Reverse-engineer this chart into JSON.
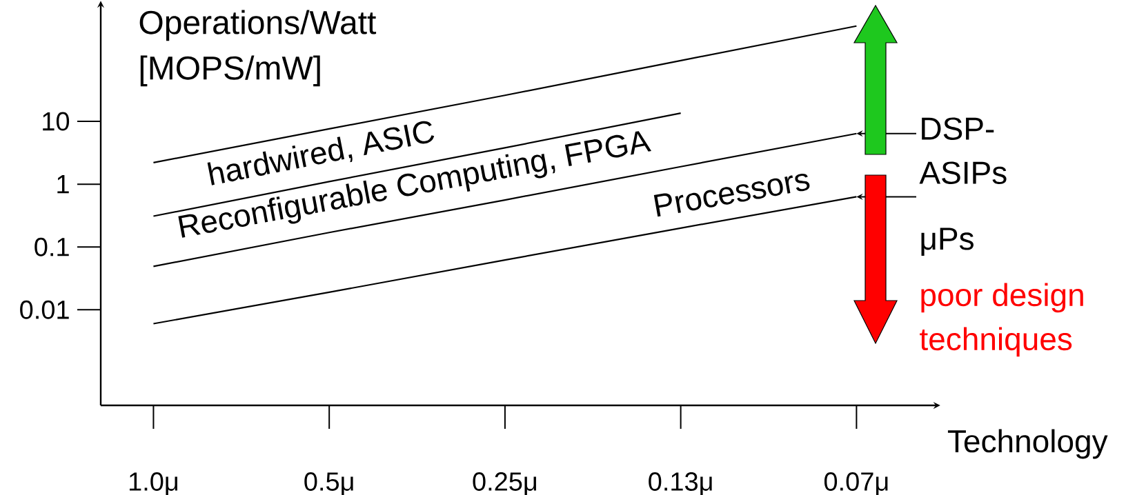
{
  "chart_data": {
    "type": "line",
    "xlabel": "Technology",
    "ylabel": "Operations/Watt [MOPS/mW]",
    "log": "y",
    "categories": [
      "1.0μ",
      "0.5μ",
      "0.25μ",
      "0.13μ",
      "0.07μ"
    ],
    "ylim": [
      0.0003,
      700
    ],
    "yticks": [
      0.01,
      0.1,
      1,
      10
    ],
    "series": [
      {
        "color": "#000000",
        "values": [
          2.2,
          7.6,
          26,
          93,
          330
        ]
      },
      {
        "name": "hardwired, ASIC",
        "color": "#000000",
        "values": [
          0.31,
          1.1,
          3.8,
          13.5,
          null
        ]
      },
      {
        "name": "Reconfigurable Computing, FPGA",
        "color": "#000000",
        "values": [
          0.049,
          0.17,
          0.56,
          1.9,
          6.4
        ]
      },
      {
        "name": "Processors",
        "color": "#000000",
        "values": [
          0.006,
          0.019,
          0.062,
          0.2,
          0.63
        ]
      }
    ],
    "annotations": [
      "DSP-ASIPs",
      "μPs",
      "poor design techniques"
    ]
  }
}
